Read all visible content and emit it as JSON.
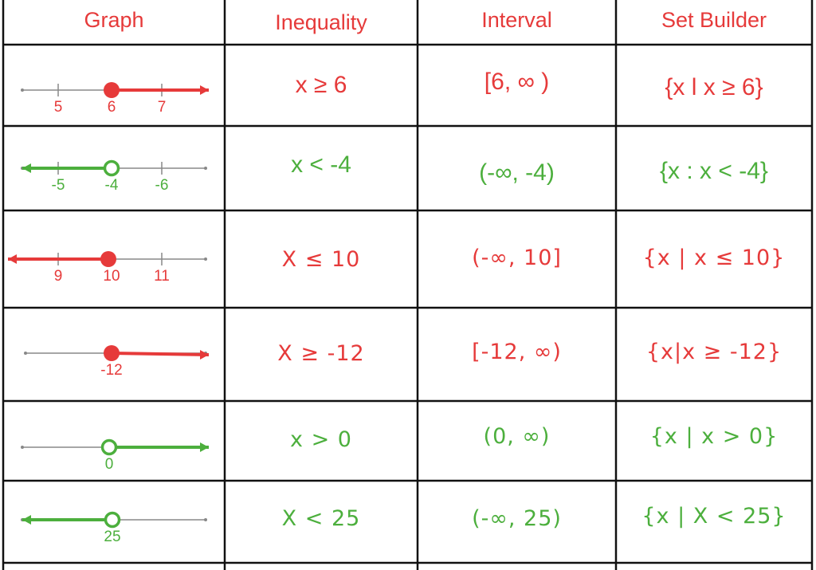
{
  "colors": {
    "red": "#e63a3a",
    "green": "#4caf3d",
    "axis": "#888888",
    "grid": "#111111"
  },
  "headers": {
    "graph": "Graph",
    "inequality": "Inequality",
    "interval": "Interval",
    "set_builder": "Set Builder"
  },
  "rows": [
    {
      "color": "red",
      "inequality": "x ≥ 6",
      "interval": "[6, ∞ )",
      "set_builder": "{x l x ≥ 6}",
      "graph": {
        "labels": [
          "5",
          "6",
          "7"
        ],
        "point_label_index": 1,
        "closed": true,
        "direction": "right"
      }
    },
    {
      "color": "green",
      "inequality": "x < -4",
      "interval": "(-∞, -4)",
      "set_builder": "{x : x < -4}",
      "graph": {
        "labels": [
          "-5",
          "-4",
          "-6"
        ],
        "point_label_index": 1,
        "closed": false,
        "direction": "left"
      }
    },
    {
      "color": "red",
      "inequality": "X ≤ 10",
      "interval": "(-∞, 10]",
      "set_builder": "{x | x ≤ 10}",
      "graph": {
        "labels": [
          "9",
          "10",
          "11"
        ],
        "point_label_index": 1,
        "closed": true,
        "direction": "left"
      }
    },
    {
      "color": "red",
      "inequality": "X ≥ -12",
      "interval": "[-12, ∞)",
      "set_builder": "{x|x ≥ -12}",
      "graph": {
        "labels": [
          "-12"
        ],
        "point_label_index": 0,
        "closed": true,
        "direction": "right"
      }
    },
    {
      "color": "green",
      "inequality": "x > 0",
      "interval": "(0, ∞)",
      "set_builder": "{x | x > 0}",
      "graph": {
        "labels": [
          "0"
        ],
        "point_label_index": 0,
        "closed": false,
        "direction": "right"
      }
    },
    {
      "color": "green",
      "inequality": "X < 25",
      "interval": "(-∞, 25)",
      "set_builder": "{x | X < 25}",
      "graph": {
        "labels": [
          "25"
        ],
        "point_label_index": 0,
        "closed": false,
        "direction": "left"
      }
    }
  ]
}
